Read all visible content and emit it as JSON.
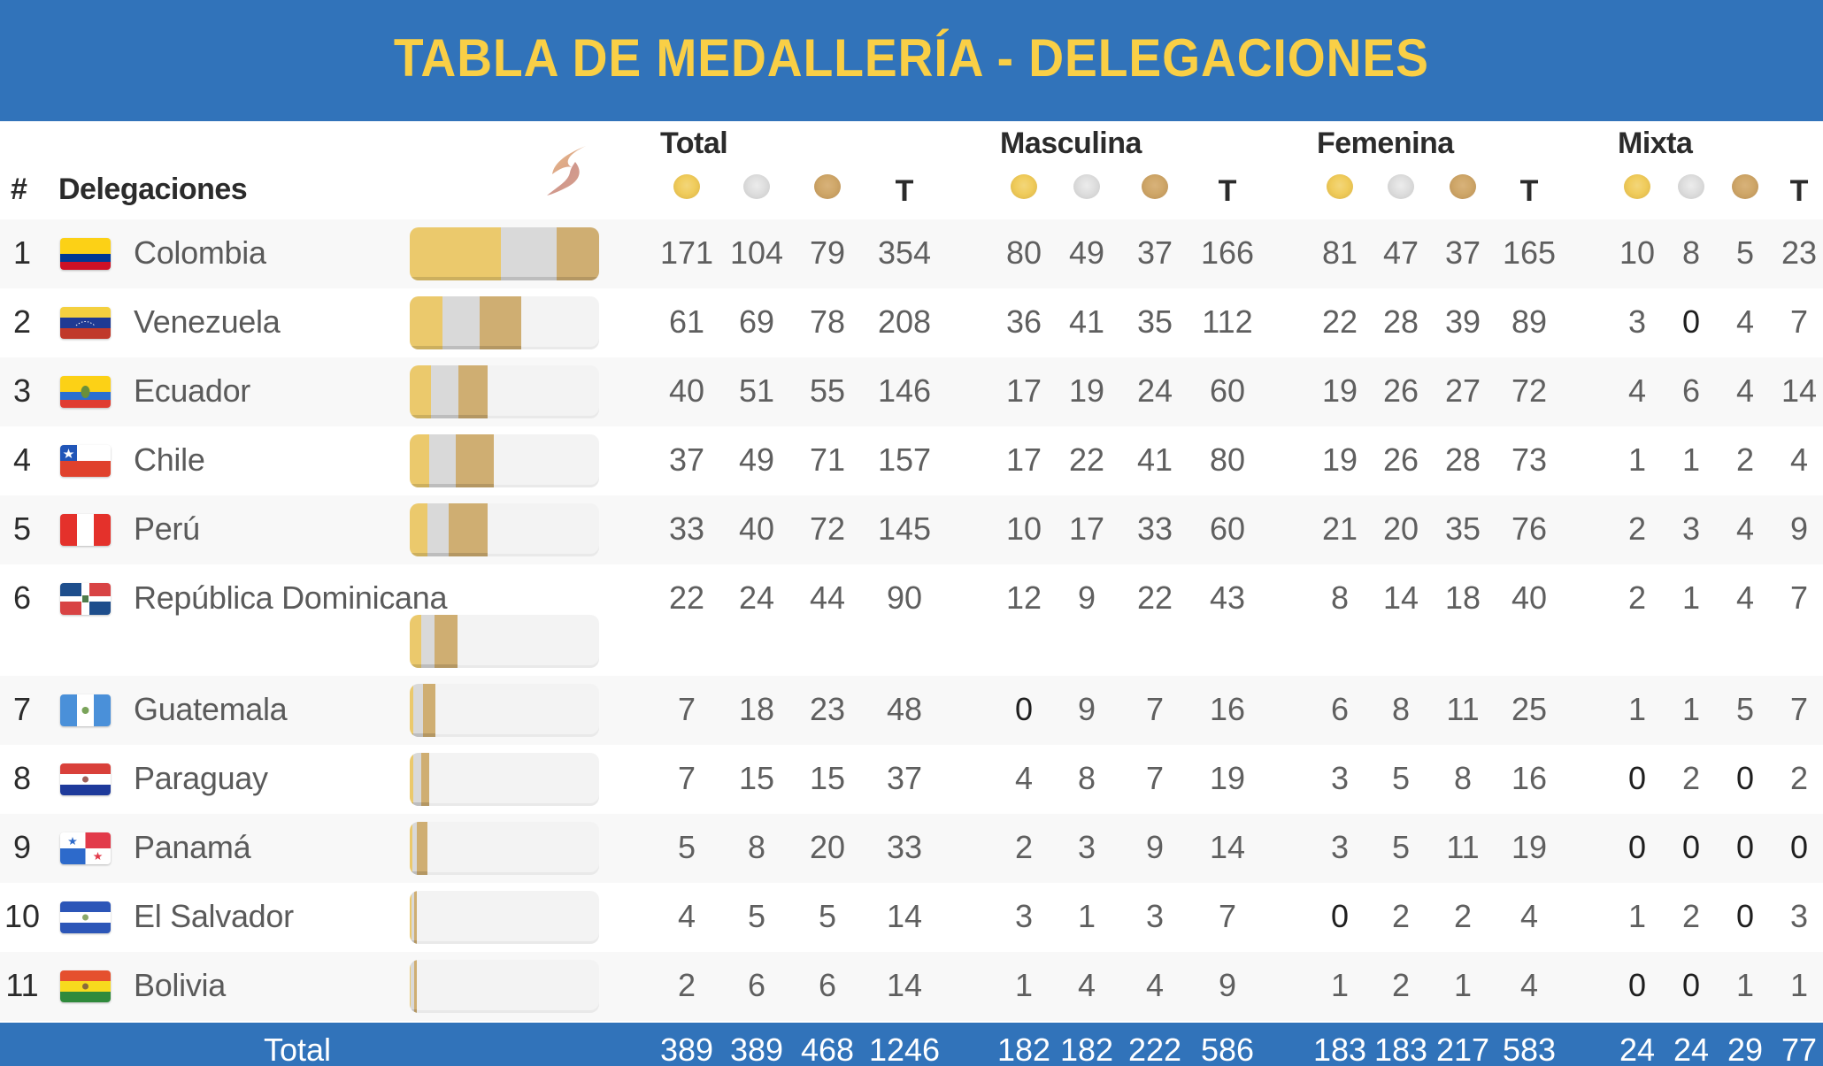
{
  "header": {
    "title": "TABLA DE MEDALLERÍA - DELEGACIONES"
  },
  "columns": {
    "rank": "#",
    "delegation": "Delegaciones",
    "logo_icon": "sports-swoosh-logo-icon",
    "groups": [
      {
        "label": "Total",
        "medals": [
          "gold-medal-icon",
          "silver-medal-icon",
          "bronze-medal-icon"
        ],
        "total_label": "T"
      },
      {
        "label": "Masculina",
        "medals": [
          "gold-medal-icon",
          "silver-medal-icon",
          "bronze-medal-icon"
        ],
        "total_label": "T"
      },
      {
        "label": "Femenina",
        "medals": [
          "gold-medal-icon",
          "silver-medal-icon",
          "bronze-medal-icon"
        ],
        "total_label": "T"
      },
      {
        "label": "Mixta",
        "medals": [
          "gold-medal-icon",
          "silver-medal-icon",
          "bronze-medal-icon"
        ],
        "total_label": "T"
      }
    ]
  },
  "colors": {
    "header_bg": "#3173BA",
    "title": "#F9CF46",
    "gold": "#EBC96C",
    "silver": "#D9D9D9",
    "bronze": "#CFAE72"
  },
  "rows": [
    {
      "rank": "1",
      "country": "Colombia",
      "flag": "colombia-flag-icon",
      "total": [
        "171",
        "104",
        "79",
        "354"
      ],
      "masculina": [
        "80",
        "49",
        "37",
        "166"
      ],
      "femenina": [
        "81",
        "47",
        "37",
        "165"
      ],
      "mixta": [
        "10",
        "8",
        "5",
        "23"
      ]
    },
    {
      "rank": "2",
      "country": "Venezuela",
      "flag": "venezuela-flag-icon",
      "total": [
        "61",
        "69",
        "78",
        "208"
      ],
      "masculina": [
        "36",
        "41",
        "35",
        "112"
      ],
      "femenina": [
        "22",
        "28",
        "39",
        "89"
      ],
      "mixta": [
        "3",
        "0",
        "4",
        "7"
      ]
    },
    {
      "rank": "3",
      "country": "Ecuador",
      "flag": "ecuador-flag-icon",
      "total": [
        "40",
        "51",
        "55",
        "146"
      ],
      "masculina": [
        "17",
        "19",
        "24",
        "60"
      ],
      "femenina": [
        "19",
        "26",
        "27",
        "72"
      ],
      "mixta": [
        "4",
        "6",
        "4",
        "14"
      ]
    },
    {
      "rank": "4",
      "country": "Chile",
      "flag": "chile-flag-icon",
      "total": [
        "37",
        "49",
        "71",
        "157"
      ],
      "masculina": [
        "17",
        "22",
        "41",
        "80"
      ],
      "femenina": [
        "19",
        "26",
        "28",
        "73"
      ],
      "mixta": [
        "1",
        "1",
        "2",
        "4"
      ]
    },
    {
      "rank": "5",
      "country": "Perú",
      "flag": "peru-flag-icon",
      "total": [
        "33",
        "40",
        "72",
        "145"
      ],
      "masculina": [
        "10",
        "17",
        "33",
        "60"
      ],
      "femenina": [
        "21",
        "20",
        "35",
        "76"
      ],
      "mixta": [
        "2",
        "3",
        "4",
        "9"
      ]
    },
    {
      "rank": "6",
      "country": "República Dominicana",
      "flag": "dominican-republic-flag-icon",
      "total": [
        "22",
        "24",
        "44",
        "90"
      ],
      "masculina": [
        "12",
        "9",
        "22",
        "43"
      ],
      "femenina": [
        "8",
        "14",
        "18",
        "40"
      ],
      "mixta": [
        "2",
        "1",
        "4",
        "7"
      ]
    },
    {
      "rank": "7",
      "country": "Guatemala",
      "flag": "guatemala-flag-icon",
      "total": [
        "7",
        "18",
        "23",
        "48"
      ],
      "masculina": [
        "0",
        "9",
        "7",
        "16"
      ],
      "femenina": [
        "6",
        "8",
        "11",
        "25"
      ],
      "mixta": [
        "1",
        "1",
        "5",
        "7"
      ]
    },
    {
      "rank": "8",
      "country": "Paraguay",
      "flag": "paraguay-flag-icon",
      "total": [
        "7",
        "15",
        "15",
        "37"
      ],
      "masculina": [
        "4",
        "8",
        "7",
        "19"
      ],
      "femenina": [
        "3",
        "5",
        "8",
        "16"
      ],
      "mixta": [
        "0",
        "2",
        "0",
        "2"
      ]
    },
    {
      "rank": "9",
      "country": "Panamá",
      "flag": "panama-flag-icon",
      "total": [
        "5",
        "8",
        "20",
        "33"
      ],
      "masculina": [
        "2",
        "3",
        "9",
        "14"
      ],
      "femenina": [
        "3",
        "5",
        "11",
        "19"
      ],
      "mixta": [
        "0",
        "0",
        "0",
        "0"
      ]
    },
    {
      "rank": "10",
      "country": "El Salvador",
      "flag": "el-salvador-flag-icon",
      "total": [
        "4",
        "5",
        "5",
        "14"
      ],
      "masculina": [
        "3",
        "1",
        "3",
        "7"
      ],
      "femenina": [
        "0",
        "2",
        "2",
        "4"
      ],
      "mixta": [
        "1",
        "2",
        "0",
        "3"
      ]
    },
    {
      "rank": "11",
      "country": "Bolivia",
      "flag": "bolivia-flag-icon",
      "total": [
        "2",
        "6",
        "6",
        "14"
      ],
      "masculina": [
        "1",
        "4",
        "4",
        "9"
      ],
      "femenina": [
        "1",
        "2",
        "1",
        "4"
      ],
      "mixta": [
        "0",
        "0",
        "1",
        "1"
      ]
    }
  ],
  "footer": {
    "label": "Total",
    "total": [
      "389",
      "389",
      "468",
      "1246"
    ],
    "masculina": [
      "182",
      "182",
      "222",
      "586"
    ],
    "femenina": [
      "183",
      "183",
      "217",
      "583"
    ],
    "mixta": [
      "24",
      "24",
      "29",
      "77"
    ]
  }
}
